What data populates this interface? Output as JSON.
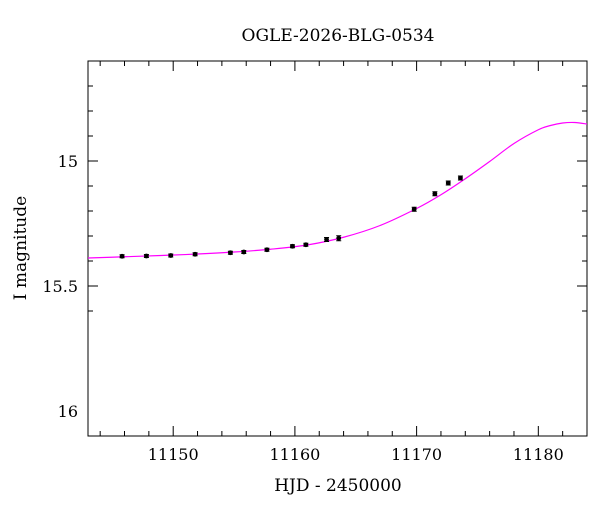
{
  "chart_data": {
    "type": "scatter",
    "title": "OGLE-2026-BLG-0534",
    "xlabel": "HJD - 2450000",
    "ylabel": "I magnitude",
    "xlim": [
      11143,
      11184
    ],
    "ylim": [
      16.1,
      14.6
    ],
    "y_inverted": true,
    "grid": false,
    "x_ticks": [
      11150,
      11160,
      11170,
      11180
    ],
    "y_ticks": [
      15,
      15.5,
      16
    ],
    "y_tick_labels": [
      "15",
      "15.5",
      "16"
    ],
    "colors": {
      "data_points": "#000000",
      "model_curve": "#ff00ff",
      "axes": "#000000"
    },
    "series": [
      {
        "kind": "points_with_errorbars",
        "x": [
          11145.8,
          11147.8,
          11149.8,
          11151.8,
          11154.7,
          11155.8,
          11157.7,
          11159.8,
          11160.9,
          11162.6,
          11163.6,
          11169.8,
          11171.5,
          11172.6,
          11173.6
        ],
        "y": [
          15.381,
          15.38,
          15.378,
          15.373,
          15.367,
          15.364,
          15.355,
          15.341,
          15.335,
          15.314,
          15.309,
          15.193,
          15.131,
          15.088,
          15.068
        ],
        "err": [
          0.006,
          0.006,
          0.006,
          0.006,
          0.006,
          0.006,
          0.006,
          0.006,
          0.006,
          0.008,
          0.01,
          0.008,
          0.008,
          0.008,
          0.008
        ]
      },
      {
        "kind": "model_curve",
        "x": [
          11143,
          11146,
          11149,
          11152,
          11155,
          11158,
          11161,
          11164,
          11167,
          11170,
          11172,
          11174,
          11176,
          11178,
          11180,
          11181,
          11182,
          11183,
          11184
        ],
        "y": [
          15.388,
          15.383,
          15.378,
          15.372,
          15.364,
          15.353,
          15.336,
          15.305,
          15.258,
          15.19,
          15.135,
          15.071,
          15.002,
          14.93,
          14.875,
          14.858,
          14.848,
          14.846,
          14.852
        ]
      }
    ]
  }
}
